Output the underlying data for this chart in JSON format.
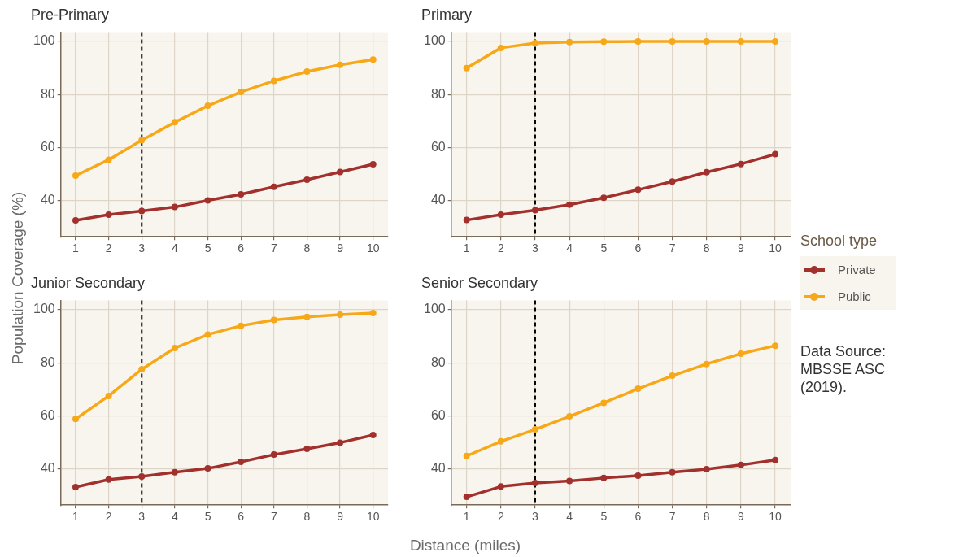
{
  "chart_data": [
    {
      "type": "line",
      "title": "Pre-Primary",
      "ylabel": "Population Coverage (%)",
      "legend_title": "School type",
      "x": [
        1,
        2,
        3,
        4,
        5,
        6,
        7,
        8,
        9,
        10
      ],
      "xlim": [
        0.55,
        10.45
      ],
      "xticks": [
        1,
        2,
        3,
        4,
        5,
        6,
        7,
        8,
        9,
        10
      ],
      "ylim": [
        26.5,
        103.5
      ],
      "yticks": [
        40,
        60,
        80,
        100
      ],
      "grid": true,
      "marker": "circle",
      "line_style": "solid",
      "legend": "right",
      "ref_lines": [
        {
          "axis": "x",
          "value": 3,
          "color": "#000000",
          "line_style": "dashed"
        }
      ],
      "series": [
        {
          "name": "Private",
          "color": "#a2312d",
          "values": [
            32.7,
            34.8,
            36.2,
            37.7,
            40.2,
            42.5,
            45.3,
            48,
            50.9,
            53.8
          ]
        },
        {
          "name": "Public",
          "color": "#f7a818",
          "values": [
            49.5,
            55.5,
            62.8,
            69.6,
            75.8,
            81,
            85.2,
            88.7,
            91.2,
            93.2
          ]
        }
      ]
    },
    {
      "type": "line",
      "title": "Primary",
      "x": [
        1,
        2,
        3,
        4,
        5,
        6,
        7,
        8,
        9,
        10
      ],
      "xlim": [
        0.55,
        10.45
      ],
      "xticks": [
        1,
        2,
        3,
        4,
        5,
        6,
        7,
        8,
        9,
        10
      ],
      "ylim": [
        26.5,
        103.5
      ],
      "yticks": [
        40,
        60,
        80,
        100
      ],
      "grid": true,
      "marker": "circle",
      "line_style": "solid",
      "ref_lines": [
        {
          "axis": "x",
          "value": 3,
          "color": "#000000",
          "line_style": "dashed"
        }
      ],
      "series": [
        {
          "color": "#a2312d",
          "values": [
            32.8,
            34.8,
            36.5,
            38.6,
            41.2,
            44.2,
            47.3,
            50.8,
            53.9,
            57.6
          ]
        },
        {
          "color": "#f7a818",
          "values": [
            90,
            97.6,
            99.4,
            99.8,
            99.9,
            100,
            100,
            100,
            100,
            100
          ]
        }
      ]
    },
    {
      "type": "line",
      "title": "Junior Secondary",
      "xlabel": "Distance (miles)",
      "x": [
        1,
        2,
        3,
        4,
        5,
        6,
        7,
        8,
        9,
        10
      ],
      "xlim": [
        0.55,
        10.45
      ],
      "xticks": [
        1,
        2,
        3,
        4,
        5,
        6,
        7,
        8,
        9,
        10
      ],
      "ylim": [
        26.5,
        103.5
      ],
      "yticks": [
        40,
        60,
        80,
        100
      ],
      "grid": true,
      "marker": "circle",
      "line_style": "solid",
      "ref_lines": [
        {
          "axis": "x",
          "value": 3,
          "color": "#000000",
          "line_style": "dashed"
        }
      ],
      "series": [
        {
          "color": "#a2312d",
          "values": [
            33.3,
            36.1,
            37.3,
            38.9,
            40.3,
            42.8,
            45.5,
            47.7,
            50,
            52.9
          ]
        },
        {
          "color": "#f7a818",
          "values": [
            58.9,
            67.6,
            77.6,
            85.6,
            90.7,
            94,
            96.2,
            97.3,
            98.2,
            98.8
          ]
        }
      ]
    },
    {
      "type": "line",
      "title": "Senior Secondary",
      "annotations": [
        "Data Source: MBSSE ASC (2019)."
      ],
      "x": [
        1,
        2,
        3,
        4,
        5,
        6,
        7,
        8,
        9,
        10
      ],
      "xlim": [
        0.55,
        10.45
      ],
      "xticks": [
        1,
        2,
        3,
        4,
        5,
        6,
        7,
        8,
        9,
        10
      ],
      "ylim": [
        26.5,
        103.5
      ],
      "yticks": [
        40,
        60,
        80,
        100
      ],
      "grid": true,
      "marker": "circle",
      "line_style": "solid",
      "ref_lines": [
        {
          "axis": "x",
          "value": 3,
          "color": "#000000",
          "line_style": "dashed"
        }
      ],
      "series": [
        {
          "color": "#a2312d",
          "values": [
            29.6,
            33.5,
            34.8,
            35.6,
            36.7,
            37.6,
            38.9,
            40,
            41.6,
            43.5
          ]
        },
        {
          "color": "#f7a818",
          "values": [
            45,
            50.5,
            55,
            59.9,
            65,
            70.3,
            75.2,
            79.6,
            83.5,
            86.5
          ]
        }
      ]
    }
  ]
}
